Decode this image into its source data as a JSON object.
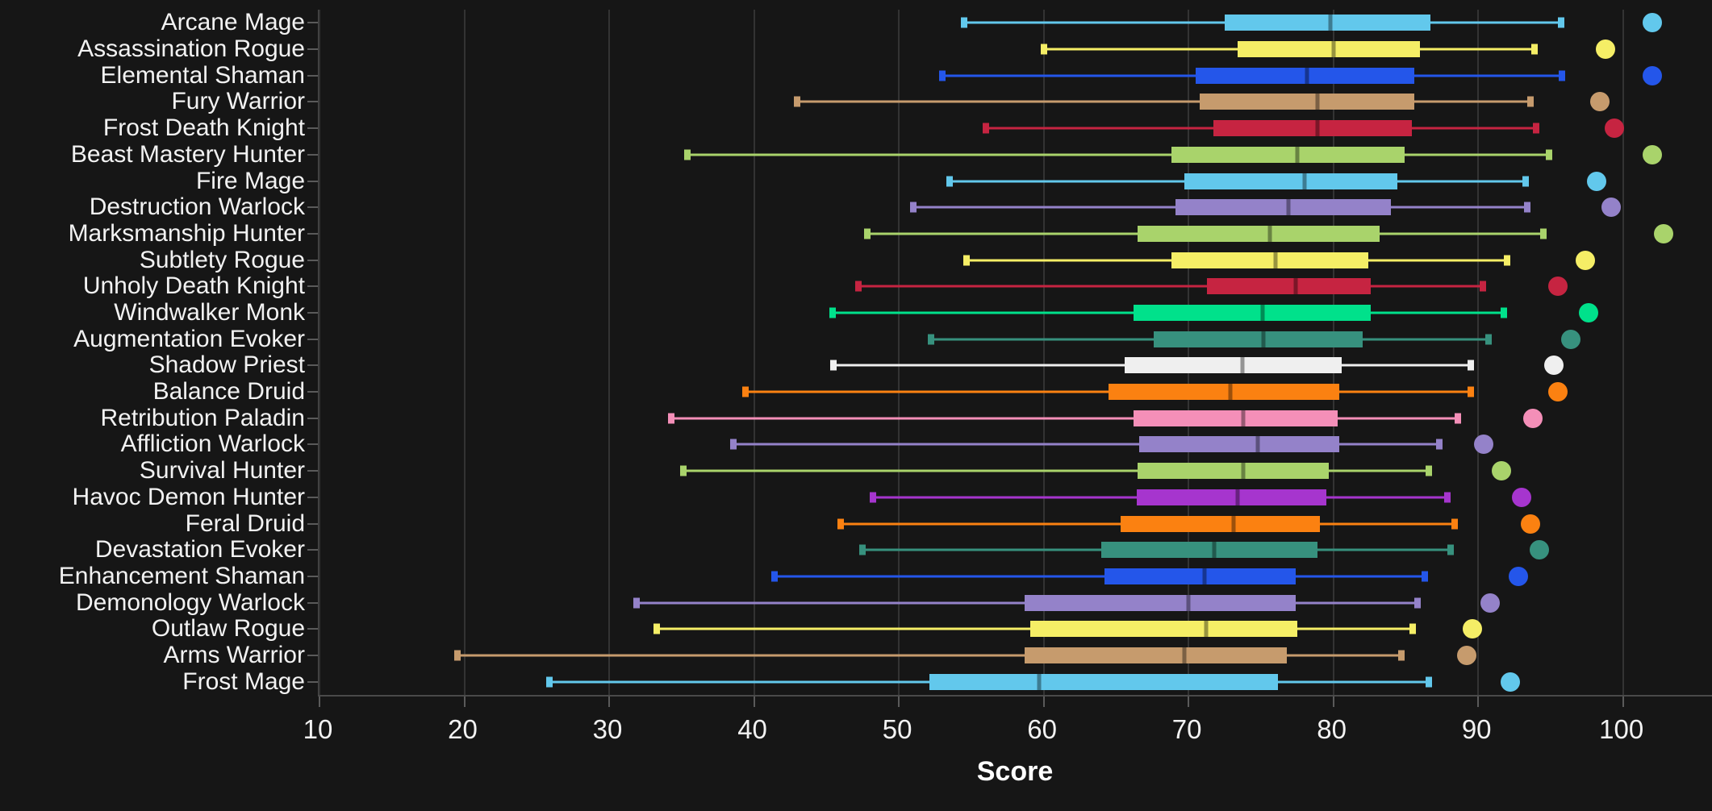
{
  "chart_data": {
    "type": "boxplot",
    "orientation": "horizontal",
    "title": "",
    "xlabel": "Score",
    "ylabel": "",
    "xticks": [
      10,
      20,
      30,
      40,
      50,
      60,
      70,
      80,
      90,
      100
    ],
    "xlim": [
      10,
      106.2
    ],
    "grid": "vertical-gridlines",
    "legend": "none",
    "colors": {
      "background": "#161616",
      "gridline": "#333333",
      "axis": "#4a4a4a",
      "text": "#f2f2f2"
    },
    "categories": [
      "Arcane Mage",
      "Assassination Rogue",
      "Elemental Shaman",
      "Fury Warrior",
      "Frost Death Knight",
      "Beast Mastery Hunter",
      "Fire Mage",
      "Destruction Warlock",
      "Marksmanship Hunter",
      "Subtlety Rogue",
      "Unholy Death Knight",
      "Windwalker Monk",
      "Augmentation Evoker",
      "Shadow Priest",
      "Balance Druid",
      "Retribution Paladin",
      "Affliction Warlock",
      "Survival Hunter",
      "Havoc Demon Hunter",
      "Feral Druid",
      "Devastation Evoker",
      "Enhancement Shaman",
      "Demonology Warlock",
      "Outlaw Rogue",
      "Arms Warrior",
      "Frost Mage"
    ],
    "series": [
      {
        "label": "Arcane Mage",
        "color": "#62C8EC",
        "whisker_low": 54.5,
        "q1": 72.5,
        "median": 79.8,
        "q3": 86.7,
        "whisker_high": 95.7,
        "outlier": 102.0
      },
      {
        "label": "Assassination Rogue",
        "color": "#F5EE66",
        "whisker_low": 60.0,
        "q1": 73.4,
        "median": 80.0,
        "q3": 86.0,
        "whisker_high": 93.9,
        "outlier": 98.8
      },
      {
        "label": "Elemental Shaman",
        "color": "#2456EA",
        "whisker_low": 53.0,
        "q1": 70.5,
        "median": 78.2,
        "q3": 85.6,
        "whisker_high": 95.8,
        "outlier": 102.0
      },
      {
        "label": "Fury Warrior",
        "color": "#C69B6D",
        "whisker_low": 43.0,
        "q1": 70.8,
        "median": 78.9,
        "q3": 85.6,
        "whisker_high": 93.6,
        "outlier": 98.4
      },
      {
        "label": "Frost Death Knight",
        "color": "#C62441",
        "whisker_low": 56.0,
        "q1": 71.7,
        "median": 78.9,
        "q3": 85.4,
        "whisker_high": 94.0,
        "outlier": 99.4
      },
      {
        "label": "Beast Mastery Hunter",
        "color": "#A9D36B",
        "whisker_low": 35.4,
        "q1": 68.8,
        "median": 77.5,
        "q3": 84.9,
        "whisker_high": 94.9,
        "outlier": 102.0
      },
      {
        "label": "Fire Mage",
        "color": "#62C8EC",
        "whisker_low": 53.5,
        "q1": 69.7,
        "median": 78.0,
        "q3": 84.4,
        "whisker_high": 93.3,
        "outlier": 98.2
      },
      {
        "label": "Destruction Warlock",
        "color": "#9482C9",
        "whisker_low": 51.0,
        "q1": 69.1,
        "median": 76.9,
        "q3": 84.0,
        "whisker_high": 93.4,
        "outlier": 99.2
      },
      {
        "label": "Marksmanship Hunter",
        "color": "#A9D36B",
        "whisker_low": 47.8,
        "q1": 66.5,
        "median": 75.6,
        "q3": 83.2,
        "whisker_high": 94.5,
        "outlier": 102.8
      },
      {
        "label": "Subtlety Rogue",
        "color": "#F5EE66",
        "whisker_low": 54.7,
        "q1": 68.8,
        "median": 76.0,
        "q3": 82.4,
        "whisker_high": 92.0,
        "outlier": 97.4
      },
      {
        "label": "Unholy Death Knight",
        "color": "#C62441",
        "whisker_low": 47.2,
        "q1": 71.3,
        "median": 77.4,
        "q3": 82.6,
        "whisker_high": 90.3,
        "outlier": 95.5
      },
      {
        "label": "Windwalker Monk",
        "color": "#00E18B",
        "whisker_low": 45.4,
        "q1": 66.2,
        "median": 75.1,
        "q3": 82.6,
        "whisker_high": 91.8,
        "outlier": 97.6
      },
      {
        "label": "Augmentation Evoker",
        "color": "#37917E",
        "whisker_low": 52.2,
        "q1": 67.6,
        "median": 75.2,
        "q3": 82.0,
        "whisker_high": 90.7,
        "outlier": 96.4
      },
      {
        "label": "Shadow Priest",
        "color": "#EFEFEF",
        "whisker_low": 45.5,
        "q1": 65.6,
        "median": 73.7,
        "q3": 80.6,
        "whisker_high": 89.5,
        "outlier": 95.2
      },
      {
        "label": "Balance Druid",
        "color": "#FB8111",
        "whisker_low": 39.4,
        "q1": 64.5,
        "median": 72.9,
        "q3": 80.4,
        "whisker_high": 89.5,
        "outlier": 95.5
      },
      {
        "label": "Retribution Paladin",
        "color": "#F48FB8",
        "whisker_low": 34.3,
        "q1": 66.2,
        "median": 73.8,
        "q3": 80.3,
        "whisker_high": 88.6,
        "outlier": 93.8
      },
      {
        "label": "Affliction Warlock",
        "color": "#9482C9",
        "whisker_low": 38.6,
        "q1": 66.6,
        "median": 74.8,
        "q3": 80.4,
        "whisker_high": 87.3,
        "outlier": 90.4
      },
      {
        "label": "Survival Hunter",
        "color": "#A9D36B",
        "whisker_low": 35.1,
        "q1": 66.5,
        "median": 73.8,
        "q3": 79.7,
        "whisker_high": 86.6,
        "outlier": 91.6
      },
      {
        "label": "Havoc Demon Hunter",
        "color": "#A635CE",
        "whisker_low": 48.2,
        "q1": 66.4,
        "median": 73.4,
        "q3": 79.5,
        "whisker_high": 87.9,
        "outlier": 93.0
      },
      {
        "label": "Feral Druid",
        "color": "#FB8111",
        "whisker_low": 46.0,
        "q1": 65.3,
        "median": 73.1,
        "q3": 79.1,
        "whisker_high": 88.4,
        "outlier": 93.6
      },
      {
        "label": "Devastation Evoker",
        "color": "#37917E",
        "whisker_low": 47.5,
        "q1": 64.0,
        "median": 71.8,
        "q3": 78.9,
        "whisker_high": 88.1,
        "outlier": 94.2
      },
      {
        "label": "Enhancement Shaman",
        "color": "#2456EA",
        "whisker_low": 41.4,
        "q1": 64.2,
        "median": 71.1,
        "q3": 77.4,
        "whisker_high": 86.3,
        "outlier": 92.8
      },
      {
        "label": "Demonology Warlock",
        "color": "#9482C9",
        "whisker_low": 31.9,
        "q1": 58.7,
        "median": 70.0,
        "q3": 77.4,
        "whisker_high": 85.8,
        "outlier": 90.8
      },
      {
        "label": "Outlaw Rogue",
        "color": "#F5EE66",
        "whisker_low": 33.3,
        "q1": 59.1,
        "median": 71.2,
        "q3": 77.5,
        "whisker_high": 85.5,
        "outlier": 89.6
      },
      {
        "label": "Arms Warrior",
        "color": "#C69B6D",
        "whisker_low": 19.5,
        "q1": 58.7,
        "median": 69.7,
        "q3": 76.8,
        "whisker_high": 84.7,
        "outlier": 89.2
      },
      {
        "label": "Frost Mage",
        "color": "#62C8EC",
        "whisker_low": 25.9,
        "q1": 52.1,
        "median": 59.7,
        "q3": 76.2,
        "whisker_high": 86.6,
        "outlier": 92.2
      }
    ]
  }
}
